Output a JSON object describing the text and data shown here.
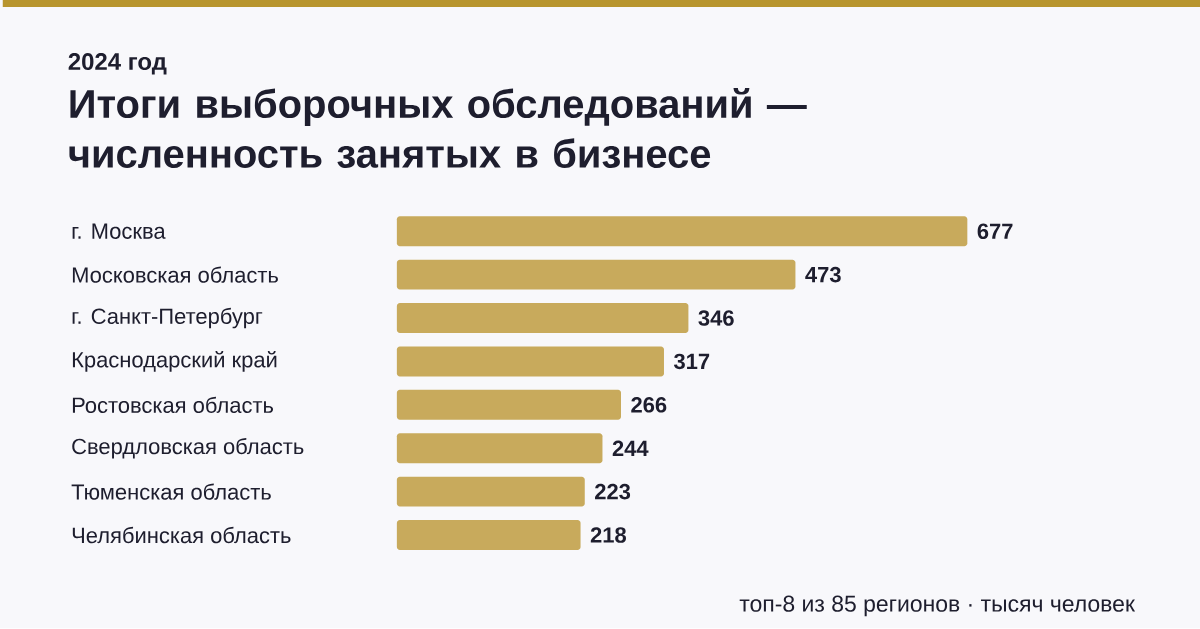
{
  "chart_data": {
    "type": "bar",
    "orientation": "horizontal",
    "title": "Итоги выборочных обследований — численность занятых в бизнесе",
    "subtitle": "2024 год",
    "categories": [
      "г. Москва",
      "Московская область",
      "г. Санкт-Петербург",
      "Краснодарский край",
      "Ростовская область",
      "Свердловская область",
      "Тюменская область",
      "Челябинская область"
    ],
    "values": [
      677,
      473,
      346,
      317,
      266,
      244,
      223,
      218
    ],
    "color": "#c8aa5c",
    "data_labels": true,
    "annotations": [
      "топ-8 из 85 регионов · тысяч человек"
    ]
  }
}
